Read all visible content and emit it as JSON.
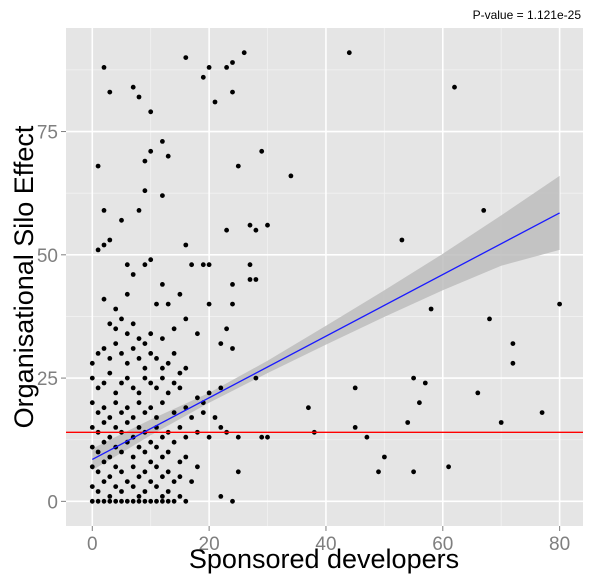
{
  "chart_data": {
    "type": "scatter",
    "title": "",
    "annotation": "P-value = 1.121e-25",
    "xlabel": "Sponsored developers",
    "ylabel": "Organisational Silo Effect",
    "xlim": [
      -4.5,
      84
    ],
    "ylim": [
      -5,
      96
    ],
    "x_ticks": [
      0,
      20,
      40,
      60,
      80
    ],
    "y_ticks": [
      0,
      25,
      50,
      75
    ],
    "x_tick_labels": [
      "0",
      "20",
      "40",
      "60",
      "80"
    ],
    "y_tick_labels": [
      "0",
      "25",
      "50",
      "75"
    ],
    "grid": true,
    "colors": {
      "panel": "#e5e5e5",
      "grid_major": "#ffffff",
      "points": "#000000",
      "regression": "#1a1aff",
      "confidence_band": "#bdbdbd",
      "reference_line": "#ff0000"
    },
    "regression_line": {
      "x": [
        0,
        80
      ],
      "y": [
        8.5,
        58.5
      ]
    },
    "confidence_band": {
      "x": [
        0,
        10,
        20,
        30,
        40,
        50,
        60,
        70,
        80
      ],
      "lower": [
        6.3,
        13.4,
        20.0,
        26.0,
        31.8,
        37.4,
        42.8,
        47.8,
        51.0
      ],
      "upper": [
        10.7,
        16.6,
        22.0,
        28.5,
        35.6,
        42.8,
        50.2,
        58.0,
        66.0
      ]
    },
    "reference_line": {
      "y": 14
    },
    "points": [
      {
        "x": 2,
        "y": 88
      },
      {
        "x": 3,
        "y": 83
      },
      {
        "x": 7,
        "y": 84
      },
      {
        "x": 8,
        "y": 82
      },
      {
        "x": 10,
        "y": 79
      },
      {
        "x": 12,
        "y": 73
      },
      {
        "x": 13,
        "y": 70
      },
      {
        "x": 16,
        "y": 90
      },
      {
        "x": 19,
        "y": 86
      },
      {
        "x": 20,
        "y": 88
      },
      {
        "x": 21,
        "y": 81
      },
      {
        "x": 23,
        "y": 88
      },
      {
        "x": 24,
        "y": 89
      },
      {
        "x": 24,
        "y": 83
      },
      {
        "x": 26,
        "y": 91
      },
      {
        "x": 44,
        "y": 91
      },
      {
        "x": 62,
        "y": 84
      },
      {
        "x": 1,
        "y": 68
      },
      {
        "x": 9,
        "y": 69
      },
      {
        "x": 10,
        "y": 71
      },
      {
        "x": 9,
        "y": 63
      },
      {
        "x": 12,
        "y": 62
      },
      {
        "x": 25,
        "y": 68
      },
      {
        "x": 29,
        "y": 71
      },
      {
        "x": 34,
        "y": 66
      },
      {
        "x": 2,
        "y": 59
      },
      {
        "x": 5,
        "y": 57
      },
      {
        "x": 8,
        "y": 59
      },
      {
        "x": 67,
        "y": 59
      },
      {
        "x": 1,
        "y": 51
      },
      {
        "x": 2,
        "y": 52
      },
      {
        "x": 3,
        "y": 53
      },
      {
        "x": 27,
        "y": 56
      },
      {
        "x": 28,
        "y": 55
      },
      {
        "x": 30,
        "y": 56
      },
      {
        "x": 23,
        "y": 55
      },
      {
        "x": 16,
        "y": 52
      },
      {
        "x": 53,
        "y": 53
      },
      {
        "x": 6,
        "y": 48
      },
      {
        "x": 7,
        "y": 46
      },
      {
        "x": 9,
        "y": 48
      },
      {
        "x": 10,
        "y": 49
      },
      {
        "x": 12,
        "y": 44
      },
      {
        "x": 17,
        "y": 48
      },
      {
        "x": 19,
        "y": 48
      },
      {
        "x": 20,
        "y": 48
      },
      {
        "x": 27,
        "y": 48
      },
      {
        "x": 28,
        "y": 45
      },
      {
        "x": 27,
        "y": 45
      },
      {
        "x": 24,
        "y": 44
      },
      {
        "x": 2,
        "y": 41
      },
      {
        "x": 4,
        "y": 39
      },
      {
        "x": 6,
        "y": 42
      },
      {
        "x": 11,
        "y": 40
      },
      {
        "x": 13,
        "y": 40
      },
      {
        "x": 15,
        "y": 42
      },
      {
        "x": 20,
        "y": 40
      },
      {
        "x": 24,
        "y": 40
      },
      {
        "x": 3,
        "y": 36
      },
      {
        "x": 4,
        "y": 35
      },
      {
        "x": 5,
        "y": 37
      },
      {
        "x": 6,
        "y": 34
      },
      {
        "x": 7,
        "y": 36
      },
      {
        "x": 8,
        "y": 33
      },
      {
        "x": 9,
        "y": 32
      },
      {
        "x": 10,
        "y": 34
      },
      {
        "x": 12,
        "y": 33
      },
      {
        "x": 14,
        "y": 35
      },
      {
        "x": 16,
        "y": 37
      },
      {
        "x": 18,
        "y": 34
      },
      {
        "x": 23,
        "y": 35
      },
      {
        "x": 24,
        "y": 31
      },
      {
        "x": 22,
        "y": 32
      },
      {
        "x": 58,
        "y": 39
      },
      {
        "x": 68,
        "y": 37
      },
      {
        "x": 80,
        "y": 40
      },
      {
        "x": 0,
        "y": 28
      },
      {
        "x": 1,
        "y": 30
      },
      {
        "x": 2,
        "y": 31
      },
      {
        "x": 3,
        "y": 29
      },
      {
        "x": 4,
        "y": 32
      },
      {
        "x": 5,
        "y": 30
      },
      {
        "x": 6,
        "y": 28
      },
      {
        "x": 7,
        "y": 31
      },
      {
        "x": 8,
        "y": 29
      },
      {
        "x": 9,
        "y": 27
      },
      {
        "x": 10,
        "y": 30
      },
      {
        "x": 11,
        "y": 29
      },
      {
        "x": 12,
        "y": 27
      },
      {
        "x": 13,
        "y": 28
      },
      {
        "x": 14,
        "y": 30
      },
      {
        "x": 15,
        "y": 26
      },
      {
        "x": 16,
        "y": 27
      },
      {
        "x": 72,
        "y": 32
      },
      {
        "x": 72,
        "y": 28
      },
      {
        "x": 66,
        "y": 22
      },
      {
        "x": 0,
        "y": 25
      },
      {
        "x": 1,
        "y": 23
      },
      {
        "x": 2,
        "y": 24
      },
      {
        "x": 3,
        "y": 26
      },
      {
        "x": 4,
        "y": 22
      },
      {
        "x": 5,
        "y": 24
      },
      {
        "x": 6,
        "y": 25
      },
      {
        "x": 7,
        "y": 23
      },
      {
        "x": 8,
        "y": 22
      },
      {
        "x": 9,
        "y": 25
      },
      {
        "x": 10,
        "y": 24
      },
      {
        "x": 11,
        "y": 23
      },
      {
        "x": 12,
        "y": 25
      },
      {
        "x": 13,
        "y": 22
      },
      {
        "x": 14,
        "y": 24
      },
      {
        "x": 15,
        "y": 23
      },
      {
        "x": 18,
        "y": 21
      },
      {
        "x": 19,
        "y": 20
      },
      {
        "x": 20,
        "y": 22
      },
      {
        "x": 22,
        "y": 23
      },
      {
        "x": 28,
        "y": 25
      },
      {
        "x": 45,
        "y": 23
      },
      {
        "x": 55,
        "y": 25
      },
      {
        "x": 57,
        "y": 24
      },
      {
        "x": 56,
        "y": 20
      },
      {
        "x": 0,
        "y": 20
      },
      {
        "x": 1,
        "y": 18
      },
      {
        "x": 2,
        "y": 19
      },
      {
        "x": 3,
        "y": 17
      },
      {
        "x": 4,
        "y": 20
      },
      {
        "x": 5,
        "y": 18
      },
      {
        "x": 6,
        "y": 19
      },
      {
        "x": 7,
        "y": 17
      },
      {
        "x": 8,
        "y": 20
      },
      {
        "x": 9,
        "y": 18
      },
      {
        "x": 10,
        "y": 19
      },
      {
        "x": 11,
        "y": 17
      },
      {
        "x": 12,
        "y": 20
      },
      {
        "x": 14,
        "y": 18
      },
      {
        "x": 16,
        "y": 19
      },
      {
        "x": 17,
        "y": 17
      },
      {
        "x": 19,
        "y": 18
      },
      {
        "x": 21,
        "y": 17
      },
      {
        "x": 37,
        "y": 19
      },
      {
        "x": 54,
        "y": 16
      },
      {
        "x": 70,
        "y": 16
      },
      {
        "x": 77,
        "y": 18
      },
      {
        "x": 0,
        "y": 15
      },
      {
        "x": 1,
        "y": 14
      },
      {
        "x": 2,
        "y": 16
      },
      {
        "x": 3,
        "y": 13
      },
      {
        "x": 4,
        "y": 15
      },
      {
        "x": 5,
        "y": 14
      },
      {
        "x": 6,
        "y": 16
      },
      {
        "x": 7,
        "y": 13
      },
      {
        "x": 8,
        "y": 15
      },
      {
        "x": 9,
        "y": 14
      },
      {
        "x": 10,
        "y": 12
      },
      {
        "x": 11,
        "y": 15
      },
      {
        "x": 12,
        "y": 13
      },
      {
        "x": 13,
        "y": 14
      },
      {
        "x": 14,
        "y": 12
      },
      {
        "x": 15,
        "y": 15
      },
      {
        "x": 16,
        "y": 13
      },
      {
        "x": 18,
        "y": 14
      },
      {
        "x": 20,
        "y": 13
      },
      {
        "x": 22,
        "y": 15
      },
      {
        "x": 23,
        "y": 14
      },
      {
        "x": 25,
        "y": 13
      },
      {
        "x": 29,
        "y": 13
      },
      {
        "x": 30,
        "y": 13
      },
      {
        "x": 38,
        "y": 14
      },
      {
        "x": 45,
        "y": 15
      },
      {
        "x": 47,
        "y": 13
      },
      {
        "x": 0,
        "y": 11
      },
      {
        "x": 1,
        "y": 10
      },
      {
        "x": 2,
        "y": 12
      },
      {
        "x": 3,
        "y": 9
      },
      {
        "x": 4,
        "y": 11
      },
      {
        "x": 5,
        "y": 10
      },
      {
        "x": 6,
        "y": 12
      },
      {
        "x": 7,
        "y": 9
      },
      {
        "x": 8,
        "y": 11
      },
      {
        "x": 9,
        "y": 10
      },
      {
        "x": 10,
        "y": 8
      },
      {
        "x": 11,
        "y": 11
      },
      {
        "x": 12,
        "y": 9
      },
      {
        "x": 13,
        "y": 10
      },
      {
        "x": 15,
        "y": 8
      },
      {
        "x": 16,
        "y": 9
      },
      {
        "x": 18,
        "y": 7
      },
      {
        "x": 50,
        "y": 9
      },
      {
        "x": 49,
        "y": 6
      },
      {
        "x": 55,
        "y": 6
      },
      {
        "x": 61,
        "y": 7
      },
      {
        "x": 0,
        "y": 7
      },
      {
        "x": 1,
        "y": 6
      },
      {
        "x": 2,
        "y": 8
      },
      {
        "x": 3,
        "y": 5
      },
      {
        "x": 4,
        "y": 7
      },
      {
        "x": 5,
        "y": 6
      },
      {
        "x": 6,
        "y": 4
      },
      {
        "x": 7,
        "y": 7
      },
      {
        "x": 8,
        "y": 5
      },
      {
        "x": 9,
        "y": 6
      },
      {
        "x": 10,
        "y": 4
      },
      {
        "x": 11,
        "y": 7
      },
      {
        "x": 12,
        "y": 5
      },
      {
        "x": 13,
        "y": 6
      },
      {
        "x": 14,
        "y": 4
      },
      {
        "x": 15,
        "y": 5
      },
      {
        "x": 17,
        "y": 4
      },
      {
        "x": 25,
        "y": 6
      },
      {
        "x": 0,
        "y": 3
      },
      {
        "x": 1,
        "y": 2
      },
      {
        "x": 2,
        "y": 4
      },
      {
        "x": 3,
        "y": 1
      },
      {
        "x": 4,
        "y": 3
      },
      {
        "x": 5,
        "y": 2
      },
      {
        "x": 6,
        "y": 0
      },
      {
        "x": 7,
        "y": 3
      },
      {
        "x": 8,
        "y": 1
      },
      {
        "x": 9,
        "y": 2
      },
      {
        "x": 10,
        "y": 0
      },
      {
        "x": 11,
        "y": 3
      },
      {
        "x": 12,
        "y": 1
      },
      {
        "x": 13,
        "y": 2
      },
      {
        "x": 14,
        "y": 0
      },
      {
        "x": 15,
        "y": 1
      },
      {
        "x": 16,
        "y": 0
      },
      {
        "x": 22,
        "y": 1
      },
      {
        "x": 24,
        "y": 0
      },
      {
        "x": 0,
        "y": 0
      },
      {
        "x": 1,
        "y": 0
      },
      {
        "x": 2,
        "y": 0
      },
      {
        "x": 3,
        "y": 0
      },
      {
        "x": 4,
        "y": 0
      },
      {
        "x": 5,
        "y": 0
      },
      {
        "x": 7,
        "y": 0
      },
      {
        "x": 8,
        "y": 0
      },
      {
        "x": 9,
        "y": 0
      },
      {
        "x": 11,
        "y": 0
      },
      {
        "x": 12,
        "y": 0
      },
      {
        "x": 13,
        "y": 0
      }
    ]
  }
}
